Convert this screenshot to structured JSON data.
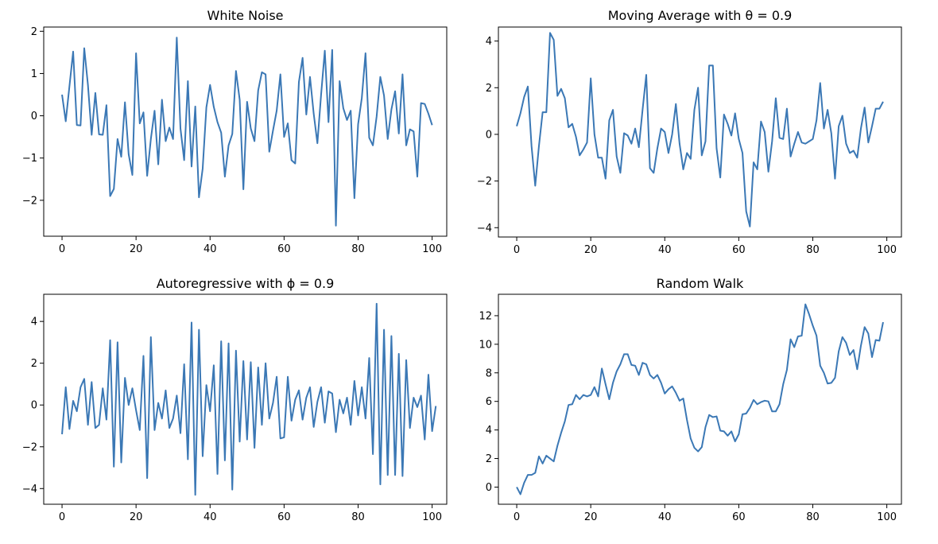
{
  "chart_data": [
    {
      "type": "line",
      "title": "White Noise",
      "xlim": [
        -4.95,
        103.95
      ],
      "ylim": [
        -2.85,
        2.1
      ],
      "xticks": [
        0,
        20,
        40,
        60,
        80,
        100
      ],
      "yticks": [
        2,
        1,
        0,
        -1,
        -2
      ],
      "ytick_labels": [
        "2",
        "1",
        "0",
        "−1",
        "−2"
      ],
      "color": "#3b78b5",
      "values": [
        0.5,
        -0.13,
        0.7,
        1.52,
        -0.22,
        -0.23,
        1.6,
        0.73,
        -0.45,
        0.54,
        -0.44,
        -0.45,
        0.25,
        -1.9,
        -1.73,
        -0.55,
        -0.97,
        0.32,
        -0.91,
        -1.4,
        1.48,
        -0.18,
        0.08,
        -1.42,
        -0.55,
        0.12,
        -1.15,
        0.38,
        -0.6,
        -0.28,
        -0.55,
        1.85,
        -0.3,
        -1.05,
        0.82,
        -1.2,
        0.22,
        -1.93,
        -1.25,
        0.2,
        0.73,
        0.21,
        -0.15,
        -0.4,
        -1.44,
        -0.7,
        -0.43,
        1.06,
        0.38,
        -1.74,
        0.33,
        -0.3,
        -0.6,
        0.6,
        1.03,
        0.98,
        -0.85,
        -0.35,
        0.12,
        0.98,
        -0.5,
        -0.18,
        -1.05,
        -1.13,
        0.8,
        1.37,
        0.03,
        0.92,
        0.05,
        -0.65,
        0.5,
        1.54,
        -0.15,
        1.56,
        -2.6,
        0.82,
        0.18,
        -0.1,
        0.12,
        -1.95,
        -0.2,
        0.42,
        1.48,
        -0.52,
        -0.7,
        -0.02,
        0.92,
        0.48,
        -0.55,
        0.15,
        0.58,
        -0.42,
        0.98,
        -0.7,
        -0.32,
        -0.37,
        -1.44,
        0.3,
        0.28,
        0.05,
        -0.22
      ]
    },
    {
      "type": "line",
      "title": "Moving Average with  θ = 0.9",
      "xlim": [
        -4.95,
        103.95
      ],
      "ylim": [
        -4.4,
        4.6
      ],
      "xticks": [
        0,
        20,
        40,
        60,
        80,
        100
      ],
      "yticks": [
        4,
        2,
        0,
        -2,
        -4
      ],
      "ytick_labels": [
        "4",
        "2",
        "0",
        "−2",
        "−4"
      ],
      "color": "#3b78b5",
      "values": [
        0.35,
        0.9,
        1.6,
        2.05,
        -0.5,
        -2.2,
        -0.5,
        0.95,
        0.95,
        4.35,
        4.05,
        1.65,
        1.95,
        1.55,
        0.3,
        0.45,
        -0.1,
        -0.9,
        -0.65,
        -0.35,
        2.4,
        0.0,
        -1.0,
        -1.0,
        -1.9,
        0.6,
        1.05,
        -0.95,
        -1.65,
        0.05,
        -0.05,
        -0.4,
        0.25,
        -0.55,
        1.05,
        2.55,
        -1.45,
        -1.65,
        -0.6,
        0.25,
        0.1,
        -0.8,
        0.0,
        1.3,
        -0.4,
        -1.5,
        -0.8,
        -1.05,
        1.05,
        2.0,
        -0.9,
        -0.3,
        2.95,
        2.95,
        -0.6,
        -1.85,
        0.85,
        0.45,
        -0.05,
        0.9,
        -0.2,
        -0.8,
        -3.3,
        -3.95,
        -1.2,
        -1.5,
        0.55,
        0.1,
        -1.6,
        -0.3,
        1.55,
        -0.15,
        -0.2,
        1.1,
        -0.95,
        -0.4,
        0.1,
        -0.35,
        -0.4,
        -0.3,
        -0.2,
        0.6,
        2.2,
        0.25,
        1.05,
        0.05,
        -1.9,
        0.35,
        0.8,
        -0.4,
        -0.8,
        -0.7,
        -1.0,
        0.25,
        1.15,
        -0.35,
        0.35,
        1.1,
        1.1,
        1.4
      ]
    },
    {
      "type": "line",
      "title": "Autoregressive with  ϕ = 0.9",
      "xlim": [
        -4.95,
        103.95
      ],
      "ylim": [
        -4.75,
        5.3
      ],
      "xticks": [
        0,
        20,
        40,
        60,
        80,
        100
      ],
      "yticks": [
        4,
        2,
        0,
        -2,
        -4
      ],
      "ytick_labels": [
        "4",
        "2",
        "0",
        "−2",
        "−4"
      ],
      "color": "#3b78b5",
      "values": [
        -1.4,
        0.85,
        -1.15,
        0.2,
        -0.3,
        0.85,
        1.25,
        -0.95,
        1.1,
        -1.1,
        -0.95,
        0.8,
        -0.7,
        3.1,
        -2.95,
        3.0,
        -2.75,
        1.3,
        0.0,
        0.8,
        -0.25,
        -1.2,
        2.35,
        -3.5,
        3.25,
        -1.2,
        0.1,
        -0.65,
        0.7,
        -1.1,
        -0.65,
        0.45,
        -1.35,
        1.95,
        -2.6,
        3.95,
        -4.3,
        3.6,
        -2.45,
        0.95,
        -0.3,
        1.9,
        -3.3,
        3.05,
        -2.65,
        2.95,
        -4.05,
        2.6,
        -1.75,
        2.1,
        -1.65,
        2.05,
        -2.05,
        1.8,
        -0.95,
        2.0,
        -0.65,
        0.1,
        1.35,
        -1.6,
        -1.55,
        1.35,
        -0.75,
        0.25,
        0.7,
        -0.7,
        0.35,
        0.85,
        -1.05,
        0.15,
        0.85,
        -0.85,
        0.65,
        0.55,
        -1.3,
        0.25,
        -0.4,
        0.35,
        -0.95,
        1.15,
        -0.5,
        0.85,
        -0.65,
        2.25,
        -2.35,
        4.85,
        -3.8,
        3.6,
        -3.35,
        3.3,
        -3.35,
        2.45,
        -3.4,
        2.15,
        -1.1,
        0.35,
        -0.1,
        0.45,
        -1.65,
        1.45,
        -1.25,
        -0.05
      ]
    },
    {
      "type": "line",
      "title": "Random Walk",
      "xlim": [
        -4.95,
        103.95
      ],
      "ylim": [
        -1.2,
        13.5
      ],
      "xticks": [
        0,
        20,
        40,
        60,
        80,
        100
      ],
      "yticks": [
        12,
        10,
        8,
        6,
        4,
        2,
        0
      ],
      "ytick_labels": [
        "12",
        "10",
        "8",
        "6",
        "4",
        "2",
        "0"
      ],
      "color": "#3b78b5",
      "values": [
        0.0,
        -0.5,
        0.3,
        0.85,
        0.85,
        1.0,
        2.15,
        1.65,
        2.2,
        2.0,
        1.8,
        2.9,
        3.8,
        4.6,
        5.75,
        5.8,
        6.45,
        6.15,
        6.45,
        6.35,
        6.45,
        7.0,
        6.35,
        8.3,
        7.2,
        6.15,
        7.3,
        8.1,
        8.6,
        9.3,
        9.3,
        8.55,
        8.5,
        7.85,
        8.7,
        8.6,
        7.85,
        7.6,
        7.85,
        7.3,
        6.55,
        6.85,
        7.05,
        6.6,
        6.05,
        6.2,
        4.7,
        3.4,
        2.75,
        2.5,
        2.8,
        4.2,
        5.05,
        4.9,
        4.95,
        3.95,
        3.9,
        3.6,
        3.9,
        3.2,
        3.7,
        5.1,
        5.15,
        5.55,
        6.1,
        5.8,
        5.95,
        6.05,
        6.0,
        5.3,
        5.3,
        5.8,
        7.2,
        8.2,
        10.35,
        9.8,
        10.55,
        10.6,
        12.8,
        12.1,
        11.3,
        10.6,
        8.5,
        8.0,
        7.25,
        7.3,
        7.65,
        9.5,
        10.5,
        10.1,
        9.25,
        9.6,
        8.25,
        9.9,
        11.2,
        10.75,
        9.1,
        10.3,
        10.25,
        11.55
      ]
    }
  ]
}
